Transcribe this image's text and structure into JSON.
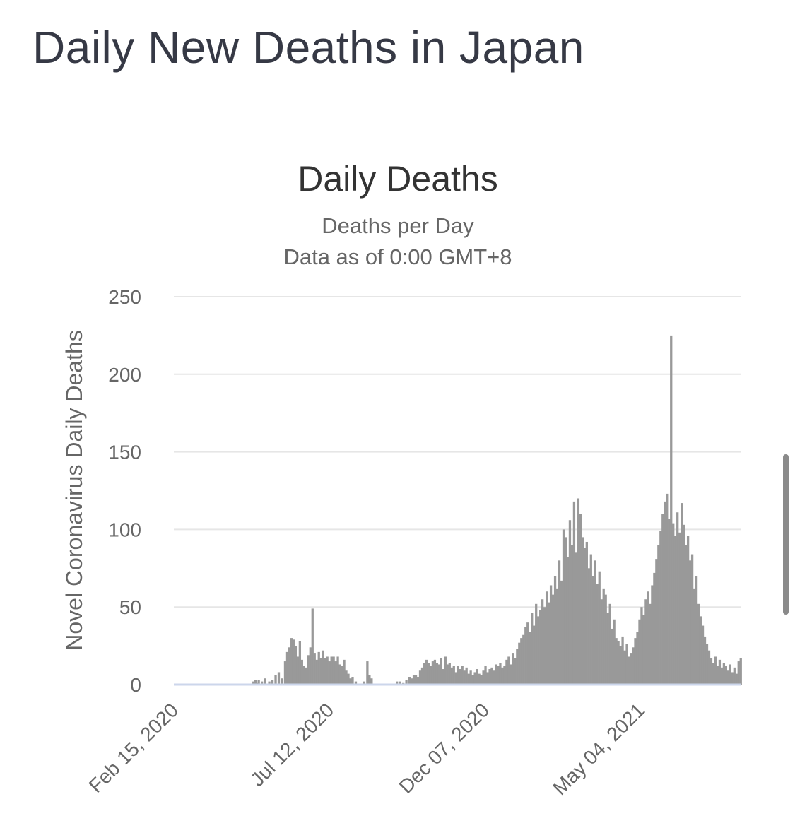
{
  "page": {
    "title": "Daily New Deaths in Japan"
  },
  "chart_data": {
    "type": "bar",
    "title": "Daily Deaths",
    "subtitle_lines": [
      "Deaths per Day",
      "Data as of 0:00 GMT+8"
    ],
    "ylabel": "Novel Coronavirus Daily Deaths",
    "xlabel": "",
    "ylim": [
      0,
      250
    ],
    "yticks": [
      0,
      50,
      100,
      150,
      200,
      250
    ],
    "xtick_labels": [
      "Feb 15, 2020",
      "Jul 12, 2020",
      "Dec 07, 2020",
      "May 04, 2021"
    ],
    "x_start": "Feb 15, 2020",
    "day_step": 1,
    "grid": true,
    "legend": "none",
    "colors": {
      "bar": "#999999",
      "grid": "#e6e6e6",
      "baseline": "#ccd6eb",
      "text": "#666666",
      "title": "#333333"
    },
    "values": [
      0,
      0,
      0,
      0,
      0,
      0,
      0,
      0,
      0,
      0,
      0,
      0,
      0,
      0,
      0,
      0,
      0,
      0,
      0,
      0,
      0,
      0,
      0,
      0,
      0,
      0,
      0,
      0,
      0,
      0,
      0,
      0,
      0,
      0,
      0,
      0,
      0,
      0,
      0,
      0,
      0,
      0,
      0,
      0,
      0,
      0,
      0,
      0,
      0,
      0,
      0,
      0,
      0,
      0,
      0,
      0,
      0,
      0,
      0,
      0,
      0,
      0,
      0,
      0,
      0,
      0,
      0,
      0,
      0,
      0,
      0,
      0,
      0,
      0,
      0,
      2,
      0,
      3,
      0,
      1,
      3,
      0,
      0,
      2,
      0,
      0,
      4,
      0,
      0,
      0,
      2,
      0,
      0,
      3,
      0,
      0,
      6,
      0,
      0,
      8,
      0,
      0,
      4,
      0,
      0,
      15,
      0,
      21,
      0,
      24,
      0,
      30,
      0,
      29,
      0,
      25,
      0,
      18,
      0,
      28,
      0,
      16,
      0,
      12,
      0,
      11,
      0,
      19,
      0,
      24,
      0,
      49,
      0,
      20,
      0,
      16,
      0,
      21,
      0,
      17,
      0,
      22,
      0,
      17,
      0,
      18,
      0,
      15,
      0,
      18,
      0,
      18,
      0,
      15,
      0,
      18,
      0,
      13,
      0,
      12,
      0,
      16,
      0,
      9,
      0,
      7,
      0,
      4,
      0,
      5,
      0,
      0,
      2,
      0,
      0,
      0,
      0,
      0,
      0,
      0,
      2,
      0,
      0,
      15,
      0,
      6,
      0,
      4,
      0,
      0,
      0,
      0,
      0,
      0,
      0,
      0,
      0,
      0,
      0,
      0,
      0,
      0,
      0,
      0,
      0,
      0,
      0,
      0,
      0,
      0,
      0,
      2,
      0,
      0,
      2,
      0,
      0,
      1,
      0,
      0,
      3,
      0,
      0,
      5,
      0,
      4,
      0,
      6,
      0,
      6,
      0,
      5,
      0,
      9,
      0,
      11,
      0,
      14,
      0,
      16,
      0,
      14,
      0,
      12,
      0,
      15,
      0,
      16,
      0,
      14,
      0,
      13,
      0,
      17,
      0,
      10,
      0,
      18,
      0,
      13,
      0,
      14,
      0,
      11,
      0,
      12,
      0,
      8,
      0,
      12,
      0,
      10,
      0,
      12,
      0,
      9,
      0,
      11,
      0,
      7,
      0,
      9,
      0,
      6,
      0,
      8,
      0,
      10,
      0,
      7,
      0,
      6,
      0,
      9,
      0,
      12,
      0,
      8,
      0,
      10,
      0,
      11,
      0,
      9,
      0,
      13,
      0,
      12,
      0,
      14,
      0,
      11,
      0,
      12,
      0,
      16,
      0,
      18,
      0,
      13,
      0,
      20,
      0,
      17,
      0,
      23,
      0,
      27,
      0,
      30,
      0,
      32,
      0,
      37,
      0,
      40,
      0,
      34,
      0,
      46,
      0,
      38,
      0,
      52,
      0,
      44,
      0,
      48,
      0,
      55,
      0,
      50,
      0,
      60,
      0,
      53,
      0,
      64,
      0,
      58,
      0,
      70,
      0,
      62,
      0,
      80,
      0,
      67,
      0,
      100,
      0,
      95,
      0,
      82,
      0,
      106,
      0,
      90,
      0,
      118,
      0,
      85,
      0,
      120,
      0,
      110,
      0,
      95,
      0,
      88,
      0,
      92,
      0,
      75,
      0,
      84,
      0,
      70,
      0,
      80,
      0,
      65,
      0,
      73,
      0,
      55,
      0,
      62,
      0,
      58,
      0,
      46,
      0,
      52,
      0,
      36,
      0,
      42,
      0,
      30,
      0,
      28,
      0,
      25,
      0,
      31,
      0,
      22,
      0,
      26,
      0,
      18,
      0,
      20,
      0,
      24,
      0,
      30,
      0,
      34,
      0,
      42,
      0,
      50,
      0,
      45,
      0,
      55,
      0,
      60,
      0,
      52,
      0,
      64,
      0,
      72,
      0,
      81,
      0,
      90,
      0,
      99,
      0,
      110,
      0,
      118,
      0,
      123,
      0,
      107,
      0,
      225,
      0,
      104,
      0,
      96,
      0,
      111,
      0,
      98,
      0,
      117,
      0,
      103,
      0,
      90,
      0,
      96,
      0,
      80,
      0,
      84,
      0,
      62,
      0,
      70,
      0,
      52,
      0,
      44,
      0,
      38,
      0,
      31,
      0,
      26,
      0,
      22,
      0,
      17,
      0,
      14,
      0,
      18,
      0,
      12,
      0,
      16,
      0,
      11,
      0,
      14,
      0,
      12,
      0,
      9,
      0,
      13,
      0,
      8,
      0,
      11,
      0,
      7,
      0,
      15,
      0,
      17
    ]
  }
}
